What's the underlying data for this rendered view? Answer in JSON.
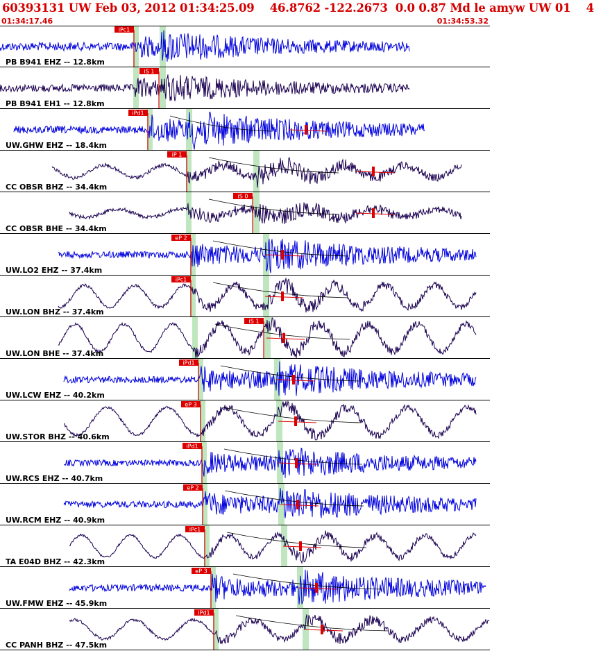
{
  "header": {
    "title": "60393131 UW Feb 03, 2012 01:34:25.09    46.8762 -122.2673  0.0 0.87 Md le amyw UW 01    4",
    "start_time": "01:34:17.46",
    "end_time": "01:34:53.32"
  },
  "colors": {
    "header_text": "#d40000",
    "vertical_trace": "#0000dd",
    "horizontal_trace": "#1a0050",
    "pick": "#dd0000",
    "window": "#bfe6bf",
    "grid": "#000000"
  },
  "chart_data": {
    "type": "line",
    "x_axis": {
      "start": "01:34:17.46",
      "end": "01:34:53.32"
    },
    "series": [
      {
        "name": "PB B941 EHZ -- 12.8km",
        "p_pick": "iPc1",
        "s_pick": ""
      },
      {
        "name": "PB B941 EH1 -- 12.8km",
        "p_pick": "",
        "s_pick": "iS 1"
      },
      {
        "name": "UW.GHW EHZ -- 18.4km",
        "p_pick": "iPd1",
        "s_pick": ""
      },
      {
        "name": "CC OBSR BHZ -- 34.4km",
        "p_pick": "iP 1",
        "s_pick": ""
      },
      {
        "name": "CC OBSR BHE -- 34.4km",
        "p_pick": "",
        "s_pick": "iS 0"
      },
      {
        "name": "UW.LO2 EHZ -- 37.4km",
        "p_pick": "eP 2",
        "s_pick": ""
      },
      {
        "name": "UW.LON BHZ -- 37.4km",
        "p_pick": "iPc1",
        "s_pick": ""
      },
      {
        "name": "UW.LON BHE -- 37.4km",
        "p_pick": "",
        "s_pick": "iS 1"
      },
      {
        "name": "UW.LCW EHZ -- 40.2km",
        "p_pick": "iPd1",
        "s_pick": ""
      },
      {
        "name": "UW.STOR BHZ -- 40.6km",
        "p_pick": "eP 3",
        "s_pick": ""
      },
      {
        "name": "UW.RCS EHZ -- 40.7km",
        "p_pick": "iPd1",
        "s_pick": ""
      },
      {
        "name": "UW.RCM EHZ -- 40.9km",
        "p_pick": "eP 2",
        "s_pick": ""
      },
      {
        "name": "TA E04D BHZ -- 42.3km",
        "p_pick": "iPc1",
        "s_pick": ""
      },
      {
        "name": "UW.FMW EHZ -- 45.9km",
        "p_pick": "eP 3",
        "s_pick": ""
      },
      {
        "name": "CC PANH BHZ -- 47.5km",
        "p_pick": "iPd1",
        "s_pick": ""
      }
    ]
  }
}
